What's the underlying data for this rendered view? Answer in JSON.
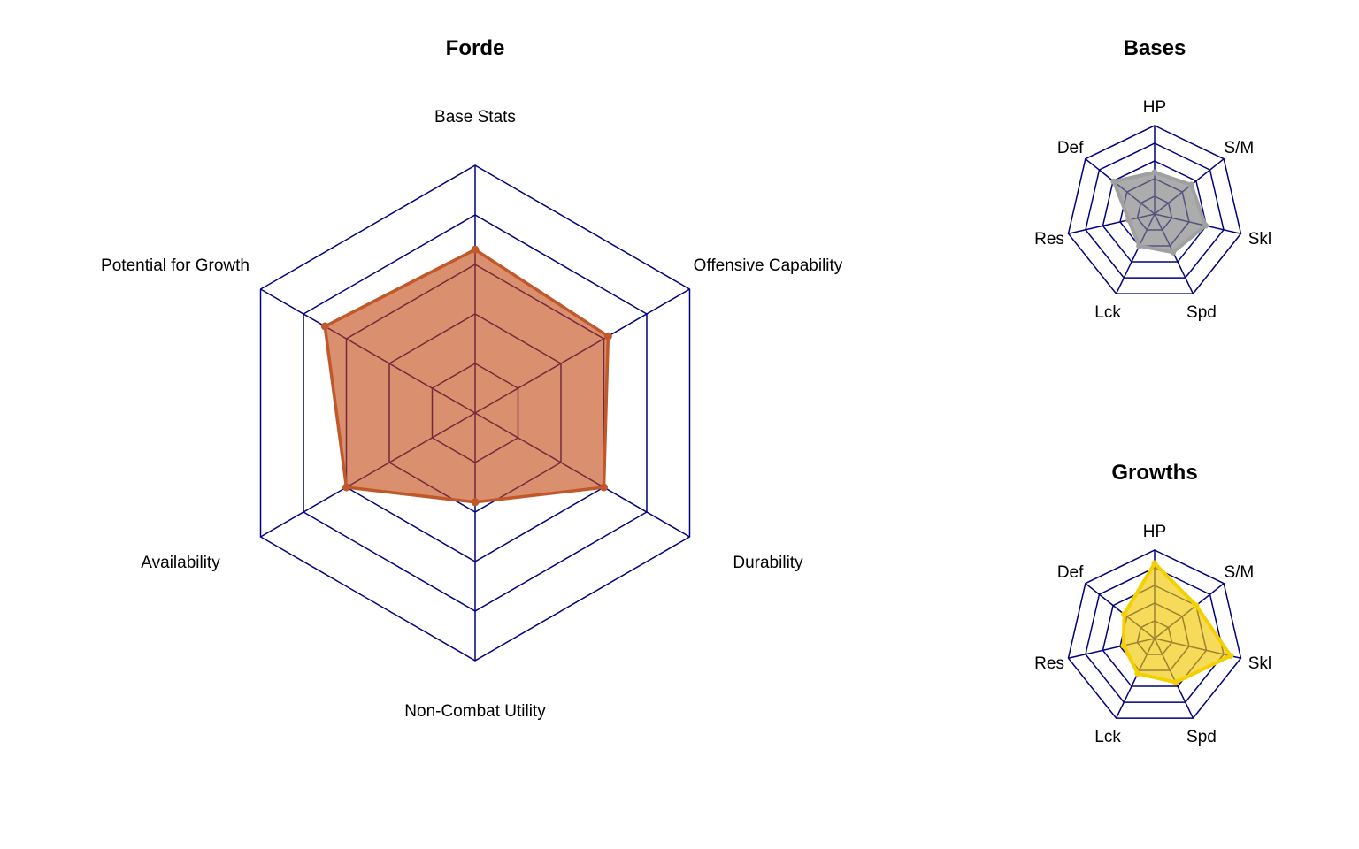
{
  "chart_data": [
    {
      "type": "radar",
      "title": "Forde",
      "categories": [
        "Base Stats",
        "Offensive Capability",
        "Durability",
        "Non-Combat Utility",
        "Availability",
        "Potential for Growth"
      ],
      "values": [
        3.3,
        3.1,
        3.0,
        1.8,
        3.0,
        3.5
      ],
      "scale_max": 5,
      "rings": 5,
      "grid_color": "#000080",
      "fill_color": "#C1440E",
      "fill_opacity": 0.6,
      "line_color": "#C0582A"
    },
    {
      "type": "radar",
      "title": "Bases",
      "categories": [
        "HP",
        "S/M",
        "Skl",
        "Spd",
        "Lck",
        "Res",
        "Def"
      ],
      "values": [
        0.47,
        0.53,
        0.59,
        0.48,
        0.4,
        0.3,
        0.59
      ],
      "scale_max": 1,
      "rings": 5,
      "grid_color": "#000080",
      "fill_color": "#808080",
      "fill_opacity": 0.65,
      "line_color": "#A0A0A0"
    },
    {
      "type": "radar",
      "title": "Growths",
      "categories": [
        "HP",
        "S/M",
        "Skl",
        "Spd",
        "Lck",
        "Res",
        "Def"
      ],
      "values": [
        0.85,
        0.6,
        0.88,
        0.55,
        0.44,
        0.36,
        0.44
      ],
      "scale_max": 1,
      "rings": 5,
      "grid_color": "#000080",
      "fill_color": "#F0C800",
      "fill_opacity": 0.65,
      "line_color": "#F5D000"
    }
  ]
}
